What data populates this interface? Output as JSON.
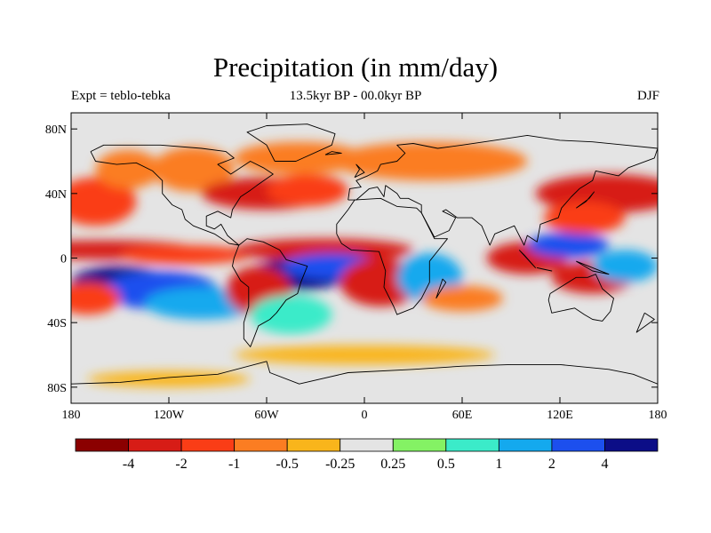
{
  "title": "Precipitation (in mm/day)",
  "left_label": "Expt = teblo-tebka",
  "center_label": "13.5kyr BP - 00.0kyr BP",
  "right_label": "DJF",
  "chart_data": {
    "type": "filled-contour-map",
    "title": "Precipitation (in mm/day)",
    "variable": "precipitation difference",
    "units": "mm/day",
    "experiment": "teblo-tebka",
    "period": "13.5kyr BP - 00.0kyr BP",
    "season": "DJF",
    "xlim": [
      -180,
      180
    ],
    "ylim": [
      -90,
      90
    ],
    "x_ticks": [
      -180,
      -120,
      -60,
      0,
      60,
      120,
      180
    ],
    "x_tick_labels": [
      "180",
      "120W",
      "60W",
      "0",
      "60E",
      "120E",
      "180"
    ],
    "y_ticks": [
      80,
      40,
      0,
      -40,
      -80
    ],
    "y_tick_labels": [
      "80N",
      "40N",
      "0",
      "40S",
      "80S"
    ],
    "colorbar": {
      "levels": [
        -4,
        -2,
        -1,
        -0.5,
        -0.25,
        0.25,
        0.5,
        1,
        2,
        4
      ],
      "labels": [
        "-4",
        "-2",
        "-1",
        "-0.5",
        "-0.25",
        "0.25",
        "0.5",
        "1",
        "2",
        "4"
      ],
      "colors": [
        "#8b0000",
        "#d71c16",
        "#fa3d16",
        "#fb7d22",
        "#f9b51b",
        "#e4e4e4",
        "#84f264",
        "#3bebc9",
        "#14a9ee",
        "#1c4fee",
        "#0c0d87"
      ]
    },
    "regions": [
      {
        "lon": -160,
        "lat": 5,
        "w": 60,
        "h": 6,
        "class": -2
      },
      {
        "lon": -110,
        "lat": 2,
        "w": 40,
        "h": 6,
        "class": -1
      },
      {
        "lon": -150,
        "lat": -15,
        "w": 30,
        "h": 10,
        "class": 4
      },
      {
        "lon": -125,
        "lat": -20,
        "w": 35,
        "h": 12,
        "class": 2
      },
      {
        "lon": -100,
        "lat": -28,
        "w": 35,
        "h": 10,
        "class": 1
      },
      {
        "lon": -170,
        "lat": -25,
        "w": 20,
        "h": 10,
        "class": -1
      },
      {
        "lon": -165,
        "lat": 35,
        "w": 25,
        "h": 15,
        "class": -1
      },
      {
        "lon": -145,
        "lat": 55,
        "w": 20,
        "h": 12,
        "class": -0.5
      },
      {
        "lon": -105,
        "lat": 55,
        "w": 25,
        "h": 14,
        "class": -0.5
      },
      {
        "lon": -60,
        "lat": 40,
        "w": 40,
        "h": 10,
        "class": -2
      },
      {
        "lon": -35,
        "lat": 42,
        "w": 25,
        "h": 10,
        "class": -1
      },
      {
        "lon": -40,
        "lat": 62,
        "w": 40,
        "h": 10,
        "class": -0.5
      },
      {
        "lon": -25,
        "lat": 5,
        "w": 55,
        "h": 7,
        "class": -2
      },
      {
        "lon": -40,
        "lat": -10,
        "w": 30,
        "h": 10,
        "class": 4
      },
      {
        "lon": -20,
        "lat": -5,
        "w": 30,
        "h": 8,
        "class": 2
      },
      {
        "lon": -65,
        "lat": -20,
        "w": 20,
        "h": 15,
        "class": -2
      },
      {
        "lon": -45,
        "lat": -35,
        "w": 25,
        "h": 12,
        "class": 0.5
      },
      {
        "lon": 10,
        "lat": -15,
        "w": 25,
        "h": 15,
        "class": -2
      },
      {
        "lon": 40,
        "lat": -12,
        "w": 20,
        "h": 15,
        "class": 1
      },
      {
        "lon": 60,
        "lat": -25,
        "w": 25,
        "h": 8,
        "class": -0.5
      },
      {
        "lon": 40,
        "lat": 60,
        "w": 60,
        "h": 12,
        "class": -0.5
      },
      {
        "lon": 100,
        "lat": 0,
        "w": 25,
        "h": 10,
        "class": -2
      },
      {
        "lon": 125,
        "lat": 8,
        "w": 25,
        "h": 8,
        "class": 2
      },
      {
        "lon": 140,
        "lat": -12,
        "w": 25,
        "h": 10,
        "class": -2
      },
      {
        "lon": 160,
        "lat": -5,
        "w": 20,
        "h": 10,
        "class": 1
      },
      {
        "lon": 150,
        "lat": 40,
        "w": 45,
        "h": 12,
        "class": -2
      },
      {
        "lon": 135,
        "lat": 25,
        "w": 25,
        "h": 10,
        "class": -1
      },
      {
        "lon": 0,
        "lat": -60,
        "w": 80,
        "h": 6,
        "class": -0.25
      },
      {
        "lon": -120,
        "lat": -75,
        "w": 50,
        "h": 5,
        "class": -0.25
      }
    ],
    "coastlines": [
      [
        [
          -168,
          66
        ],
        [
          -160,
          70
        ],
        [
          -140,
          70
        ],
        [
          -125,
          70
        ],
        [
          -100,
          68
        ],
        [
          -85,
          66
        ],
        [
          -80,
          62
        ],
        [
          -90,
          58
        ],
        [
          -82,
          52
        ],
        [
          -70,
          60
        ],
        [
          -62,
          56
        ],
        [
          -56,
          52
        ],
        [
          -66,
          45
        ],
        [
          -70,
          42
        ],
        [
          -76,
          38
        ],
        [
          -81,
          30
        ],
        [
          -82,
          25
        ],
        [
          -90,
          29
        ],
        [
          -97,
          26
        ],
        [
          -97,
          20
        ],
        [
          -92,
          18
        ],
        [
          -88,
          21
        ],
        [
          -84,
          14
        ],
        [
          -77,
          8
        ],
        [
          -83,
          9
        ],
        [
          -92,
          15
        ],
        [
          -105,
          20
        ],
        [
          -110,
          24
        ],
        [
          -112,
          30
        ],
        [
          -118,
          33
        ],
        [
          -124,
          40
        ],
        [
          -124,
          48
        ],
        [
          -130,
          54
        ],
        [
          -140,
          59
        ],
        [
          -152,
          58
        ],
        [
          -165,
          60
        ],
        [
          -168,
          66
        ]
      ],
      [
        [
          -77,
          8
        ],
        [
          -72,
          12
        ],
        [
          -62,
          10
        ],
        [
          -52,
          5
        ],
        [
          -48,
          -1
        ],
        [
          -35,
          -5
        ],
        [
          -39,
          -15
        ],
        [
          -41,
          -22
        ],
        [
          -48,
          -26
        ],
        [
          -54,
          -34
        ],
        [
          -58,
          -38
        ],
        [
          -65,
          -42
        ],
        [
          -68,
          -50
        ],
        [
          -70,
          -55
        ],
        [
          -74,
          -50
        ],
        [
          -74,
          -40
        ],
        [
          -71,
          -30
        ],
        [
          -71,
          -18
        ],
        [
          -76,
          -14
        ],
        [
          -81,
          -5
        ],
        [
          -80,
          0
        ],
        [
          -77,
          8
        ]
      ],
      [
        [
          -17,
          15
        ],
        [
          -17,
          21
        ],
        [
          -10,
          30
        ],
        [
          -6,
          36
        ],
        [
          10,
          37
        ],
        [
          20,
          32
        ],
        [
          32,
          31
        ],
        [
          35,
          28
        ],
        [
          43,
          12
        ],
        [
          51,
          12
        ],
        [
          40,
          -2
        ],
        [
          40,
          -15
        ],
        [
          35,
          -25
        ],
        [
          30,
          -31
        ],
        [
          20,
          -35
        ],
        [
          18,
          -30
        ],
        [
          12,
          -18
        ],
        [
          13,
          -8
        ],
        [
          9,
          4
        ],
        [
          -8,
          5
        ],
        [
          -14,
          9
        ],
        [
          -17,
          15
        ]
      ],
      [
        [
          -10,
          36
        ],
        [
          -9,
          43
        ],
        [
          -2,
          44
        ],
        [
          -5,
          48
        ],
        [
          2,
          51
        ],
        [
          8,
          54
        ],
        [
          10,
          58
        ],
        [
          20,
          60
        ],
        [
          25,
          65
        ],
        [
          20,
          70
        ],
        [
          30,
          71
        ],
        [
          45,
          68
        ],
        [
          60,
          70
        ],
        [
          80,
          73
        ],
        [
          100,
          76
        ],
        [
          120,
          73
        ],
        [
          140,
          72
        ],
        [
          160,
          70
        ],
        [
          180,
          68
        ],
        [
          178,
          62
        ],
        [
          162,
          56
        ],
        [
          156,
          51
        ],
        [
          142,
          54
        ],
        [
          140,
          48
        ],
        [
          132,
          43
        ],
        [
          127,
          38
        ],
        [
          121,
          31
        ],
        [
          119,
          25
        ],
        [
          108,
          21
        ],
        [
          106,
          10
        ],
        [
          100,
          14
        ],
        [
          98,
          8
        ],
        [
          92,
          20
        ],
        [
          80,
          15
        ],
        [
          77,
          8
        ],
        [
          72,
          20
        ],
        [
          66,
          25
        ],
        [
          57,
          25
        ],
        [
          50,
          30
        ],
        [
          48,
          29
        ],
        [
          56,
          25
        ],
        [
          52,
          17
        ],
        [
          43,
          13
        ],
        [
          35,
          28
        ],
        [
          35,
          33
        ],
        [
          27,
          37
        ],
        [
          22,
          37
        ],
        [
          20,
          40
        ],
        [
          13,
          45
        ],
        [
          12,
          38
        ],
        [
          8,
          44
        ],
        [
          3,
          43
        ],
        [
          -5,
          36
        ],
        [
          -10,
          36
        ]
      ],
      [
        [
          114,
          -22
        ],
        [
          122,
          -17
        ],
        [
          130,
          -12
        ],
        [
          137,
          -12
        ],
        [
          142,
          -10
        ],
        [
          146,
          -19
        ],
        [
          153,
          -25
        ],
        [
          151,
          -33
        ],
        [
          146,
          -39
        ],
        [
          140,
          -38
        ],
        [
          135,
          -35
        ],
        [
          129,
          -31
        ],
        [
          115,
          -34
        ],
        [
          113,
          -26
        ],
        [
          114,
          -22
        ]
      ],
      [
        [
          -55,
          60
        ],
        [
          -42,
          60
        ],
        [
          -20,
          70
        ],
        [
          -18,
          77
        ],
        [
          -35,
          83
        ],
        [
          -60,
          82
        ],
        [
          -72,
          78
        ],
        [
          -60,
          70
        ],
        [
          -55,
          60
        ]
      ],
      [
        [
          95,
          5
        ],
        [
          105,
          -6
        ],
        [
          98,
          2
        ],
        [
          95,
          5
        ]
      ],
      [
        [
          110,
          -7
        ],
        [
          115,
          -8
        ],
        [
          106,
          -6
        ],
        [
          110,
          -7
        ]
      ],
      [
        [
          130,
          -2
        ],
        [
          150,
          -10
        ],
        [
          140,
          -8
        ],
        [
          130,
          -2
        ]
      ],
      [
        [
          130,
          31
        ],
        [
          136,
          35
        ],
        [
          141,
          41
        ],
        [
          138,
          37
        ],
        [
          130,
          31
        ]
      ],
      [
        [
          -6,
          50
        ],
        [
          0,
          53
        ],
        [
          -5,
          58
        ],
        [
          -3,
          55
        ],
        [
          -6,
          50
        ]
      ],
      [
        [
          -24,
          64
        ],
        [
          -14,
          65
        ],
        [
          -20,
          66
        ],
        [
          -24,
          64
        ]
      ],
      [
        [
          44,
          -25
        ],
        [
          50,
          -15
        ],
        [
          48,
          -13
        ],
        [
          44,
          -25
        ]
      ],
      [
        [
          172,
          -34
        ],
        [
          178,
          -38
        ],
        [
          167,
          -46
        ],
        [
          172,
          -34
        ]
      ],
      [
        [
          -180,
          -78
        ],
        [
          -150,
          -77
        ],
        [
          -120,
          -74
        ],
        [
          -90,
          -72
        ],
        [
          -60,
          -64
        ],
        [
          -58,
          -71
        ],
        [
          -40,
          -78
        ],
        [
          -10,
          -71
        ],
        [
          30,
          -69
        ],
        [
          60,
          -67
        ],
        [
          90,
          -66
        ],
        [
          120,
          -66
        ],
        [
          150,
          -69
        ],
        [
          165,
          -72
        ],
        [
          180,
          -78
        ]
      ]
    ]
  }
}
